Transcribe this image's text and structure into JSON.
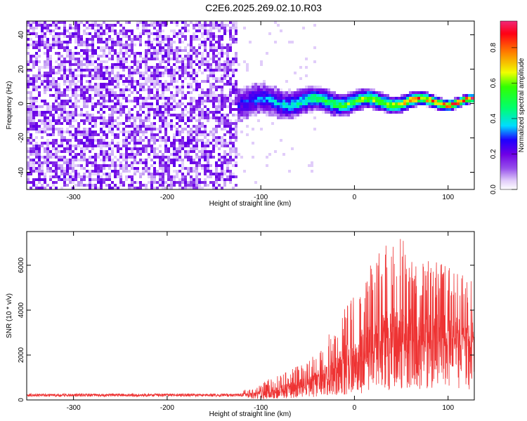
{
  "title": "C2E6.2025.269.02.10.R03",
  "chart_data": [
    {
      "type": "heatmap",
      "name": "spectrogram",
      "xlabel": "Height of straight line (km)",
      "ylabel": "Frequency (Hz)",
      "xlim": [
        -350,
        128
      ],
      "ylim": [
        -50,
        48
      ],
      "xticks": [
        -300,
        -200,
        -100,
        0,
        100
      ],
      "yticks": [
        -40,
        -20,
        0,
        20,
        40
      ],
      "colorbar": {
        "label": "Normalized spectral amplitude",
        "range": [
          0,
          0.95
        ],
        "ticks": [
          0.0,
          0.2,
          0.4,
          0.6,
          0.8
        ]
      },
      "description_regions": [
        {
          "x_from": -350,
          "x_to": -125,
          "pattern": "broadband noise, amplitude 0.05-0.15 across all frequencies"
        },
        {
          "x_from": -125,
          "x_to": 128,
          "pattern": "narrow band centered near 0 Hz, width shrinking from about 10 Hz to 2 Hz, amplitude rising to about 0.9"
        }
      ]
    },
    {
      "type": "line",
      "name": "snr",
      "xlabel": "Height of straight line (km)",
      "ylabel": "SNR (10 * v/v)",
      "xlim": [
        -350,
        128
      ],
      "ylim": [
        0,
        7500
      ],
      "xticks": [
        -300,
        -200,
        -100,
        0,
        100
      ],
      "yticks": [
        0,
        2000,
        4000,
        6000
      ],
      "color": "#ee3333",
      "envelope": [
        {
          "x": -350,
          "base": 180,
          "peak": 300
        },
        {
          "x": -250,
          "base": 180,
          "peak": 300
        },
        {
          "x": -150,
          "base": 180,
          "peak": 300
        },
        {
          "x": -110,
          "base": 220,
          "peak": 500
        },
        {
          "x": -80,
          "base": 300,
          "peak": 1200
        },
        {
          "x": -50,
          "base": 500,
          "peak": 1800
        },
        {
          "x": -30,
          "base": 800,
          "peak": 2800
        },
        {
          "x": -10,
          "base": 1200,
          "peak": 4200
        },
        {
          "x": 10,
          "base": 1500,
          "peak": 5800
        },
        {
          "x": 30,
          "base": 1900,
          "peak": 6800
        },
        {
          "x": 45,
          "base": 2200,
          "peak": 7500
        },
        {
          "x": 70,
          "base": 2300,
          "peak": 6400
        },
        {
          "x": 100,
          "base": 2300,
          "peak": 6000
        },
        {
          "x": 128,
          "base": 2300,
          "peak": 5200
        }
      ]
    }
  ]
}
